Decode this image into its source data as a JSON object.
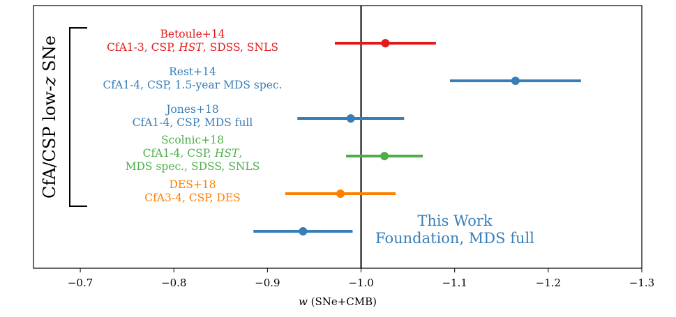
{
  "chart_data": {
    "type": "errorbar",
    "xlabel": [
      {
        "text": "w",
        "italic": true
      },
      {
        "text": " (SNe+CMB)"
      }
    ],
    "xlim": [
      -0.65,
      -1.3
    ],
    "xticks": [
      {
        "value": -0.7,
        "label": "−0.7"
      },
      {
        "value": -0.8,
        "label": "−0.8"
      },
      {
        "value": -0.9,
        "label": "−0.9"
      },
      {
        "value": -1.0,
        "label": "−1.0"
      },
      {
        "value": -1.1,
        "label": "−1.1"
      },
      {
        "value": -1.2,
        "label": "−1.2"
      },
      {
        "value": -1.3,
        "label": "−1.3"
      }
    ],
    "vline": -1.0,
    "group_label": [
      {
        "text": "CfA/CSP low-"
      },
      {
        "text": "z",
        "italic": true
      },
      {
        "text": " SNe"
      }
    ],
    "series": [
      {
        "name": "Betoule+14",
        "color": "#e31a1c",
        "value": -1.026,
        "error": 0.054,
        "lines": [
          [
            {
              "text": "Betoule+14"
            }
          ],
          [
            {
              "text": "CfA1-3, CSP, "
            },
            {
              "text": "HST",
              "italic": true
            },
            {
              "text": ", SDSS, SNLS"
            }
          ]
        ]
      },
      {
        "name": "Rest+14",
        "color": "#377eb8",
        "value": -1.165,
        "error": 0.07,
        "lines": [
          [
            {
              "text": "Rest+14"
            }
          ],
          [
            {
              "text": "CfA1-4, CSP, 1.5-year MDS spec."
            }
          ]
        ]
      },
      {
        "name": "Jones+18",
        "color": "#377eb8",
        "value": -0.989,
        "error": 0.057,
        "lines": [
          [
            {
              "text": "Jones+18"
            }
          ],
          [
            {
              "text": "CfA1-4, CSP, MDS full"
            }
          ]
        ]
      },
      {
        "name": "Scolnic+18",
        "color": "#4daf4a",
        "value": -1.025,
        "error": 0.041,
        "lines": [
          [
            {
              "text": "Scolnic+18"
            }
          ],
          [
            {
              "text": "CfA1-4, CSP, "
            },
            {
              "text": "HST",
              "italic": true
            },
            {
              "text": ","
            }
          ],
          [
            {
              "text": "MDS spec., SDSS, SNLS"
            }
          ]
        ]
      },
      {
        "name": "DES+18",
        "color": "#ff7f00",
        "value": -0.978,
        "error": 0.059,
        "lines": [
          [
            {
              "text": "DES+18"
            }
          ],
          [
            {
              "text": "CfA3-4, CSP, DES"
            }
          ]
        ]
      },
      {
        "name": "This Work",
        "color": "#377eb8",
        "value": -0.938,
        "error": 0.053,
        "lines": [
          [
            {
              "text": "This Work"
            }
          ],
          [
            {
              "text": "Foundation, MDS full"
            }
          ]
        ]
      }
    ]
  }
}
